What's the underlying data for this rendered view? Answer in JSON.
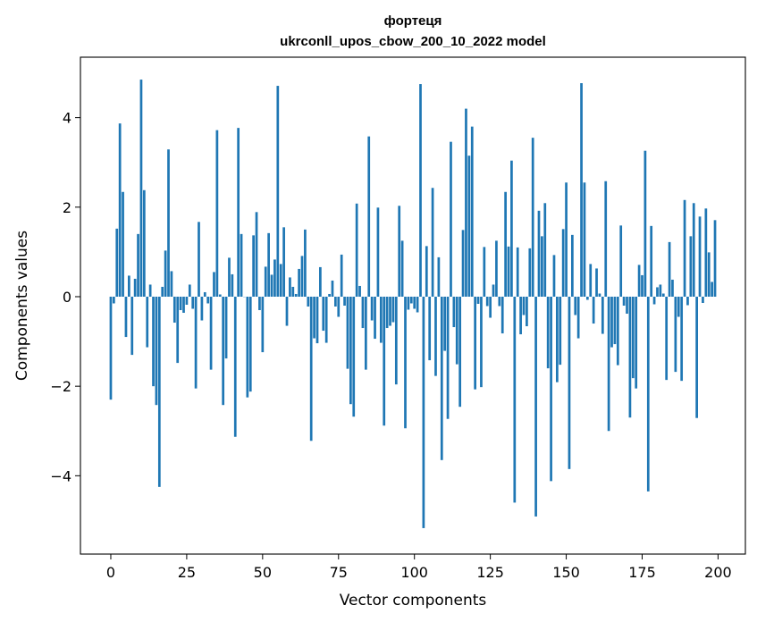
{
  "chart_data": {
    "type": "bar",
    "title": "фортеця",
    "subtitle": "ukrconll_upos_cbow_200_10_2022 model",
    "xlabel": "Vector components",
    "ylabel": "Components values",
    "xlim": [
      -10,
      209
    ],
    "ylim": [
      -5.75,
      5.35
    ],
    "xticks": [
      0,
      25,
      50,
      75,
      100,
      125,
      150,
      175,
      200
    ],
    "yticks": [
      -4,
      -2,
      0,
      2,
      4
    ],
    "xtick_labels": [
      "0",
      "25",
      "50",
      "75",
      "100",
      "125",
      "150",
      "175",
      "200"
    ],
    "ytick_labels": [
      "−4",
      "−2",
      "0",
      "2",
      "4"
    ],
    "grid": false,
    "bar_color": "#1f77b4",
    "values": [
      -2.3,
      -0.15,
      1.52,
      3.87,
      2.34,
      -0.9,
      0.47,
      -1.3,
      0.4,
      1.4,
      4.85,
      2.38,
      -1.13,
      0.27,
      -2.0,
      -2.42,
      -4.25,
      0.22,
      1.03,
      3.29,
      0.57,
      -0.58,
      -1.48,
      -0.3,
      -0.36,
      -0.18,
      0.27,
      -0.27,
      -2.05,
      1.67,
      -0.53,
      0.1,
      -0.15,
      -1.63,
      0.55,
      3.72,
      0.05,
      -2.42,
      -1.38,
      0.87,
      0.5,
      -3.13,
      3.77,
      1.4,
      0.0,
      -2.25,
      -2.12,
      1.37,
      1.89,
      -0.3,
      -1.24,
      0.67,
      1.42,
      0.49,
      0.83,
      4.71,
      0.73,
      1.55,
      -0.65,
      0.43,
      0.22,
      0.06,
      0.62,
      0.91,
      1.5,
      -0.22,
      -3.22,
      -0.93,
      -1.04,
      0.66,
      -0.76,
      -1.03,
      0.06,
      0.36,
      -0.22,
      -0.45,
      0.94,
      -0.2,
      -1.61,
      -2.4,
      -2.68,
      2.08,
      0.24,
      -0.7,
      -1.63,
      3.58,
      -0.53,
      -0.94,
      1.99,
      -1.03,
      -2.88,
      -0.7,
      -0.65,
      -0.57,
      -1.96,
      2.03,
      1.25,
      -2.94,
      -0.29,
      -0.15,
      -0.27,
      -0.35,
      4.75,
      -5.17,
      1.13,
      -1.42,
      2.43,
      -1.77,
      0.88,
      -3.65,
      -1.21,
      -2.73,
      3.46,
      -0.68,
      -1.51,
      -2.46,
      1.49,
      4.2,
      3.15,
      3.8,
      -2.07,
      -0.16,
      -2.02,
      1.11,
      -0.21,
      -0.47,
      0.27,
      1.25,
      -0.21,
      -0.82,
      2.34,
      1.12,
      3.04,
      -4.6,
      1.1,
      -0.84,
      -0.41,
      -0.66,
      1.08,
      3.55,
      -4.91,
      1.92,
      1.35,
      2.09,
      -1.6,
      -4.12,
      0.93,
      -1.91,
      -1.52,
      1.51,
      2.55,
      -3.85,
      1.38,
      -0.41,
      -0.93,
      4.77,
      2.55,
      -0.07,
      0.73,
      -0.6,
      0.63,
      0.07,
      -0.83,
      2.58,
      -3.0,
      -1.13,
      -1.06,
      -1.53,
      1.59,
      -0.2,
      -0.38,
      -2.7,
      -1.82,
      -2.05,
      0.71,
      0.48,
      3.26,
      -4.35,
      1.58,
      -0.17,
      0.21,
      0.27,
      0.07,
      -1.86,
      1.22,
      0.38,
      -1.68,
      -0.45,
      -1.88,
      2.16,
      -0.19,
      1.35,
      2.09,
      -2.71,
      1.79,
      -0.14,
      1.97,
      0.99,
      0.33,
      1.71
    ]
  }
}
